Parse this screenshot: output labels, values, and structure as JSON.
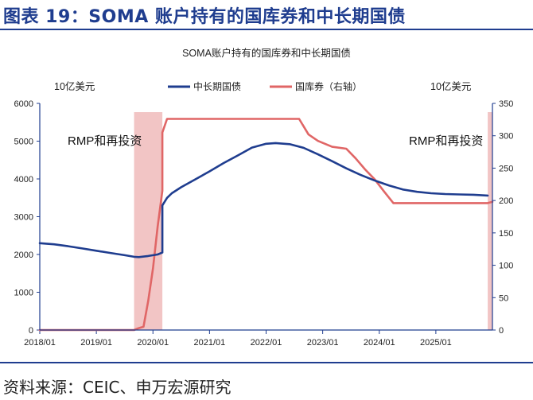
{
  "figure": {
    "title": "图表 19：SOMA 账户持有的国库券和中长期国债",
    "source": "资料来源：CEIC、申万宏源研究"
  },
  "chart_data": {
    "type": "line",
    "title": "SOMA账户持有的国库券和中长期国债",
    "left_unit": "10亿美元",
    "right_unit": "10亿美元",
    "x_ticks": [
      "2018/01",
      "2019/01",
      "2020/01",
      "2021/01",
      "2022/01",
      "2023/01",
      "2024/01",
      "2025/01"
    ],
    "y_left_ticks": [
      "0",
      "1000",
      "2000",
      "3000",
      "4000",
      "5000",
      "6000"
    ],
    "y_right_ticks": [
      "0",
      "50",
      "100",
      "150",
      "200",
      "250",
      "300",
      "350"
    ],
    "ylim_left": [
      0,
      6000
    ],
    "ylim_right": [
      0,
      350
    ],
    "xlim": [
      "2018/01",
      "2026/01"
    ],
    "legend": {
      "placement": "top-center"
    },
    "colors": {
      "notes": "#1f3d8f",
      "bills": "#e06666",
      "shade": "#f2c5c5",
      "frame": "#1f3d8f"
    },
    "shaded_periods": [
      {
        "start": "2019/09",
        "end": "2020/03",
        "label": "RMP和再投资"
      },
      {
        "start": "2025/12",
        "end": "2026/01",
        "label": "RMP和再投资"
      }
    ],
    "series": [
      {
        "name": "中长期国债",
        "axis": "left",
        "color": "#1f3d8f",
        "points": [
          [
            "2018/01",
            2300
          ],
          [
            "2018/04",
            2270
          ],
          [
            "2018/07",
            2220
          ],
          [
            "2018/10",
            2160
          ],
          [
            "2019/01",
            2100
          ],
          [
            "2019/04",
            2040
          ],
          [
            "2019/07",
            1980
          ],
          [
            "2019/09",
            1940
          ],
          [
            "2019/10",
            1930
          ],
          [
            "2019/12",
            1960
          ],
          [
            "2020/02",
            2000
          ],
          [
            "2020/03",
            2050
          ],
          [
            "2020/03",
            3300
          ],
          [
            "2020/04",
            3500
          ],
          [
            "2020/05",
            3620
          ],
          [
            "2020/07",
            3780
          ],
          [
            "2020/10",
            3990
          ],
          [
            "2021/01",
            4200
          ],
          [
            "2021/04",
            4420
          ],
          [
            "2021/07",
            4620
          ],
          [
            "2021/10",
            4830
          ],
          [
            "2022/01",
            4930
          ],
          [
            "2022/03",
            4950
          ],
          [
            "2022/06",
            4920
          ],
          [
            "2022/09",
            4820
          ],
          [
            "2022/12",
            4650
          ],
          [
            "2023/03",
            4470
          ],
          [
            "2023/06",
            4280
          ],
          [
            "2023/09",
            4110
          ],
          [
            "2023/12",
            3960
          ],
          [
            "2024/03",
            3830
          ],
          [
            "2024/06",
            3720
          ],
          [
            "2024/09",
            3660
          ],
          [
            "2024/12",
            3620
          ],
          [
            "2025/03",
            3600
          ],
          [
            "2025/06",
            3590
          ],
          [
            "2025/09",
            3580
          ],
          [
            "2025/12",
            3560
          ]
        ]
      },
      {
        "name": "国库券（右轴）",
        "axis": "right",
        "color": "#e06666",
        "points": [
          [
            "2018/01",
            0
          ],
          [
            "2019/09",
            0
          ],
          [
            "2019/10",
            3
          ],
          [
            "2019/11",
            5
          ],
          [
            "2019/12",
            45
          ],
          [
            "2020/01",
            95
          ],
          [
            "2020/02",
            160
          ],
          [
            "2020/03",
            215
          ],
          [
            "2020/03",
            305
          ],
          [
            "2020/04",
            326
          ],
          [
            "2020/05",
            326
          ],
          [
            "2021/01",
            326
          ],
          [
            "2022/01",
            326
          ],
          [
            "2022/08",
            326
          ],
          [
            "2022/10",
            302
          ],
          [
            "2022/12",
            292
          ],
          [
            "2023/03",
            283
          ],
          [
            "2023/06",
            280
          ],
          [
            "2023/08",
            265
          ],
          [
            "2023/10",
            248
          ],
          [
            "2023/12",
            233
          ],
          [
            "2024/02",
            214
          ],
          [
            "2024/04",
            196
          ],
          [
            "2024/06",
            196
          ],
          [
            "2025/01",
            196
          ],
          [
            "2025/12",
            196
          ],
          [
            "2026/01",
            198
          ]
        ]
      }
    ]
  }
}
